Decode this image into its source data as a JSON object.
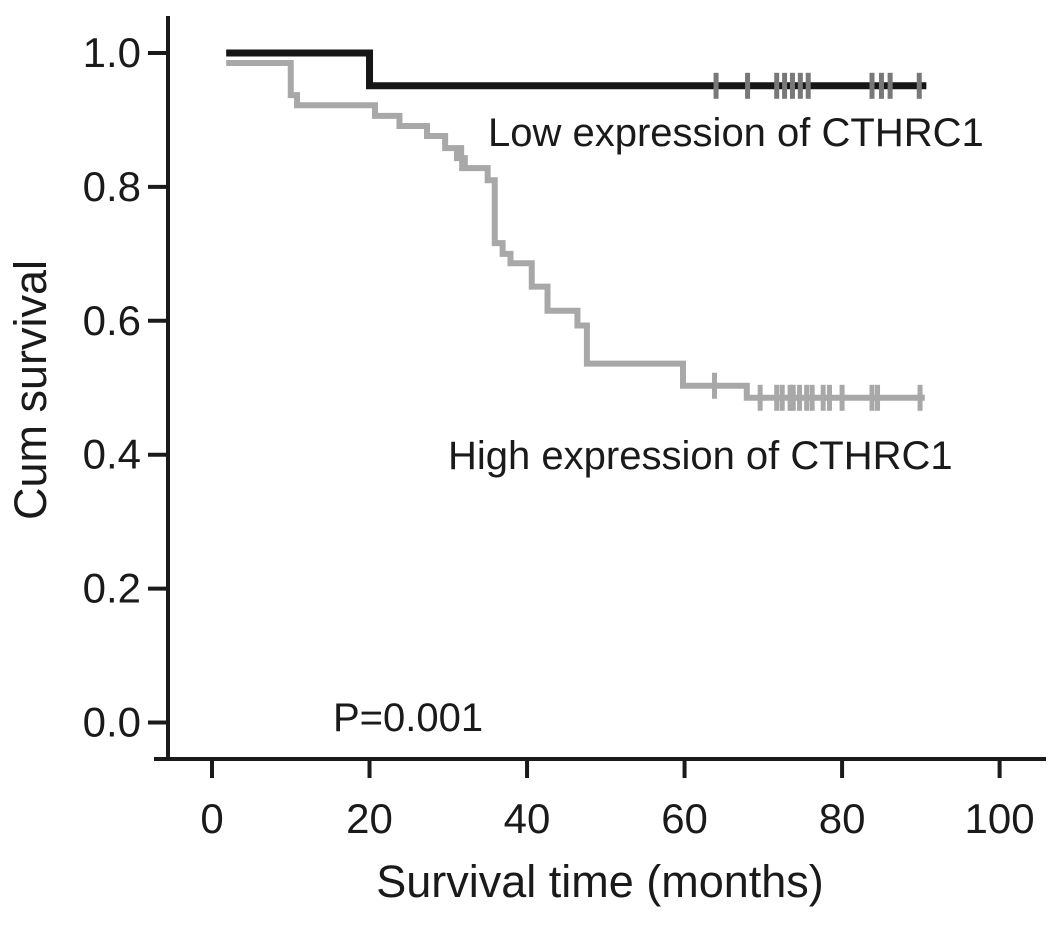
{
  "chart_data": {
    "type": "line",
    "chart_kind": "kaplan_meier_step",
    "title": "",
    "xlabel": "Survival time (months)",
    "ylabel": "Cum survival",
    "annotation_p_value": "P=0.001",
    "x_axis": {
      "min": 0,
      "max": 100,
      "ticks": [
        {
          "value": 0,
          "label": "0"
        },
        {
          "value": 20,
          "label": "20"
        },
        {
          "value": 40,
          "label": "40"
        },
        {
          "value": 60,
          "label": "60"
        },
        {
          "value": 80,
          "label": "80"
        },
        {
          "value": 100,
          "label": "100"
        }
      ]
    },
    "y_axis": {
      "min": 0.0,
      "max": 1.0,
      "ticks": [
        {
          "value": 0.0,
          "label": "0.0"
        },
        {
          "value": 0.2,
          "label": "0.2"
        },
        {
          "value": 0.4,
          "label": "0.4"
        },
        {
          "value": 0.6,
          "label": "0.6"
        },
        {
          "value": 0.8,
          "label": "0.8"
        },
        {
          "value": 1.0,
          "label": "1.0"
        }
      ]
    },
    "axis_color": "#1a1a1a",
    "series": [
      {
        "id": "low",
        "name": "Low expression of CTHRC1",
        "color": "#161616",
        "censor_color": "#787878",
        "line_width": 7,
        "start_month": 1.8,
        "end_month": 90.7,
        "steps": [
          [
            1.8,
            1.0
          ],
          [
            20.0,
            0.951
          ]
        ],
        "censor_months": [
          64.0,
          68.0,
          71.7,
          72.7,
          73.7,
          74.7,
          75.7,
          83.8,
          85.0,
          86.1,
          89.8
        ]
      },
      {
        "id": "high",
        "name": "High expression of CTHRC1",
        "color": "#a8a8a8",
        "censor_color": "#a8a8a8",
        "line_width": 6,
        "start_month": 1.8,
        "end_month": 90.5,
        "steps": [
          [
            1.8,
            0.985
          ],
          [
            10.0,
            0.937
          ],
          [
            10.8,
            0.922
          ],
          [
            20.7,
            0.906
          ],
          [
            23.8,
            0.891
          ],
          [
            27.3,
            0.876
          ],
          [
            29.6,
            0.858
          ],
          [
            31.1,
            0.843
          ],
          [
            32.1,
            0.828
          ],
          [
            35.0,
            0.81
          ],
          [
            35.9,
            0.716
          ],
          [
            36.9,
            0.7
          ],
          [
            37.9,
            0.686
          ],
          [
            40.6,
            0.651
          ],
          [
            42.6,
            0.615
          ],
          [
            46.4,
            0.593
          ],
          [
            47.6,
            0.536
          ],
          [
            59.8,
            0.503
          ],
          [
            67.9,
            0.485
          ]
        ],
        "censor_months": [
          31.7,
          63.8,
          69.6,
          71.7,
          72.4,
          73.4,
          73.8,
          74.6,
          75.5,
          76.2,
          77.6,
          78.4,
          80.0,
          83.8,
          84.5,
          89.9
        ]
      }
    ]
  }
}
